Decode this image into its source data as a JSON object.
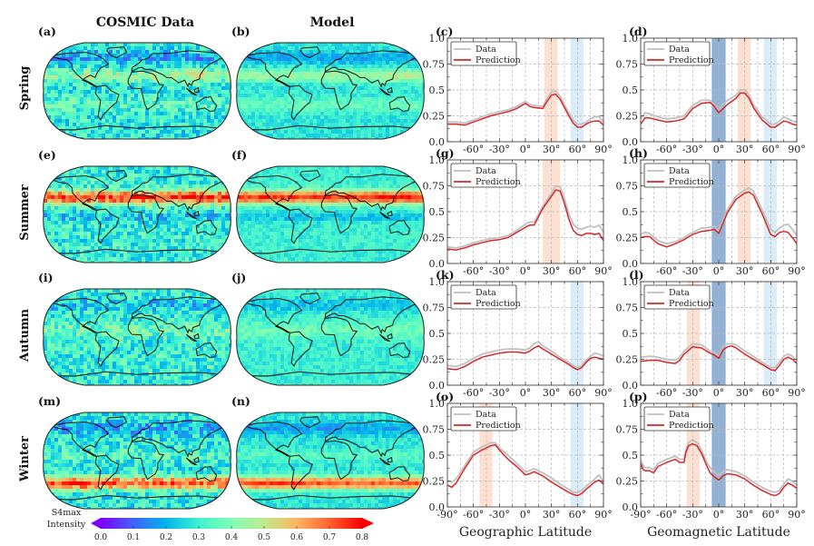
{
  "column_titles": [
    "COSMIC Data",
    "Model"
  ],
  "row_titles": [
    "Spring",
    "Summer",
    "Autumn",
    "Winter"
  ],
  "maps": [
    {
      "label": "(a)",
      "season": "Spring",
      "source": "COSMIC Data",
      "highlight": "mid-latitude band ~30N, moderate"
    },
    {
      "label": "(b)",
      "season": "Spring",
      "source": "Model",
      "highlight": "mid-latitude band ~30N, smoother"
    },
    {
      "label": "(e)",
      "season": "Summer",
      "source": "COSMIC Data",
      "highlight": "strong band 20N-45N"
    },
    {
      "label": "(f)",
      "season": "Summer",
      "source": "Model",
      "highlight": "strong band 20N-45N"
    },
    {
      "label": "(i)",
      "season": "Autumn",
      "source": "COSMIC Data",
      "highlight": "weak, near uniform"
    },
    {
      "label": "(j)",
      "season": "Autumn",
      "source": "Model",
      "highlight": "weak, near uniform"
    },
    {
      "label": "(m)",
      "season": "Winter",
      "source": "COSMIC Data",
      "highlight": "strong band 30S-60S"
    },
    {
      "label": "(n)",
      "season": "Winter",
      "source": "Model",
      "highlight": "strong band 30S-60S"
    }
  ],
  "colorbar": {
    "label_line1": "S4max",
    "label_line2": "Intensity",
    "ticks": [
      "0.0",
      "0.1",
      "0.2",
      "0.3",
      "0.4",
      "0.5",
      "0.6",
      "0.7",
      "0.8"
    ],
    "range": [
      0.0,
      0.8
    ],
    "colormap": "rainbow",
    "colors": [
      "#7f00ff",
      "#4062fa",
      "#00b5eb",
      "#3ff2d1",
      "#80ffb4",
      "#bfe98f",
      "#ffb360",
      "#ff6230",
      "#ff0000"
    ]
  },
  "legend": {
    "data": "Data",
    "prediction": "Prediction"
  },
  "colors": {
    "data": "#c0c0c0",
    "prediction": "#d62728",
    "band_orange": "#fbd5c2",
    "band_lightblue": "#cfe5f7",
    "band_darkblue": "#7fa3cc"
  },
  "xlabels": [
    "Geographic Latitude",
    "Geomagnetic Latitude"
  ],
  "chart_data": [
    {
      "type": "line",
      "label": "(c)",
      "season": "Spring",
      "xlabel": "Geographic Latitude",
      "xlim": [
        -90,
        90
      ],
      "ylim": [
        0,
        1
      ],
      "grid": true,
      "legend": "top-left",
      "xticks": [
        "-90°",
        "-60°",
        "-30°",
        "0°",
        "30°",
        "60°",
        "90°"
      ],
      "yticks": [
        "0.0",
        "0.25",
        "0.5",
        "0.75",
        "1.0"
      ],
      "bands": [
        {
          "from": 22,
          "to": 37,
          "color": "orange"
        },
        {
          "from": 52,
          "to": 67,
          "color": "lightblue"
        }
      ],
      "x": [
        -90,
        -80,
        -70,
        -60,
        -50,
        -40,
        -30,
        -20,
        -10,
        0,
        5,
        10,
        20,
        25,
        30,
        35,
        40,
        45,
        50,
        55,
        60,
        65,
        70,
        75,
        80,
        85,
        90
      ],
      "series": [
        {
          "name": "Data",
          "values": [
            0.19,
            0.19,
            0.18,
            0.21,
            0.24,
            0.27,
            0.29,
            0.31,
            0.34,
            0.39,
            0.36,
            0.35,
            0.34,
            0.42,
            0.48,
            0.49,
            0.44,
            0.36,
            0.28,
            0.21,
            0.17,
            0.17,
            0.19,
            0.22,
            0.24,
            0.24,
            0.19
          ]
        },
        {
          "name": "Prediction",
          "values": [
            0.17,
            0.17,
            0.16,
            0.19,
            0.22,
            0.25,
            0.27,
            0.29,
            0.32,
            0.37,
            0.34,
            0.33,
            0.32,
            0.39,
            0.45,
            0.46,
            0.41,
            0.33,
            0.25,
            0.18,
            0.14,
            0.14,
            0.17,
            0.19,
            0.2,
            0.2,
            0.16
          ]
        }
      ]
    },
    {
      "type": "line",
      "label": "(d)",
      "season": "Spring",
      "xlabel": "Geomagnetic Latitude",
      "xlim": [
        -90,
        90
      ],
      "ylim": [
        0,
        1
      ],
      "grid": true,
      "legend": "top-left",
      "xticks": [
        "-90°",
        "-60°",
        "-30°",
        "0°",
        "30°",
        "60°",
        "90°"
      ],
      "yticks": [
        "0.0",
        "0.25",
        "0.5",
        "0.75",
        "1.0"
      ],
      "bands": [
        {
          "from": -8,
          "to": 8,
          "color": "darkblue"
        },
        {
          "from": 22,
          "to": 37,
          "color": "orange"
        },
        {
          "from": 52,
          "to": 67,
          "color": "lightblue"
        }
      ],
      "x": [
        -90,
        -85,
        -80,
        -70,
        -60,
        -50,
        -40,
        -30,
        -20,
        -10,
        -5,
        0,
        5,
        10,
        20,
        25,
        30,
        35,
        40,
        50,
        60,
        65,
        70,
        75,
        80,
        85,
        90
      ],
      "series": [
        {
          "name": "Data",
          "values": [
            0.22,
            0.28,
            0.27,
            0.24,
            0.22,
            0.23,
            0.25,
            0.35,
            0.4,
            0.4,
            0.36,
            0.31,
            0.36,
            0.4,
            0.45,
            0.5,
            0.5,
            0.45,
            0.36,
            0.24,
            0.17,
            0.17,
            0.2,
            0.24,
            0.22,
            0.2,
            0.19
          ]
        },
        {
          "name": "Prediction",
          "values": [
            0.17,
            0.23,
            0.23,
            0.21,
            0.19,
            0.2,
            0.22,
            0.32,
            0.37,
            0.38,
            0.34,
            0.28,
            0.32,
            0.36,
            0.42,
            0.47,
            0.47,
            0.42,
            0.33,
            0.21,
            0.14,
            0.14,
            0.17,
            0.2,
            0.19,
            0.17,
            0.16
          ]
        }
      ]
    },
    {
      "type": "line",
      "label": "(g)",
      "season": "Summer",
      "xlabel": "Geographic Latitude",
      "xlim": [
        -90,
        90
      ],
      "ylim": [
        0,
        1
      ],
      "grid": true,
      "legend": "top-left",
      "xticks": [
        "-90°",
        "-60°",
        "-30°",
        "0°",
        "30°",
        "60°",
        "90°"
      ],
      "yticks": [
        "0.0",
        "0.25",
        "0.5",
        "0.75",
        "1.0"
      ],
      "bands": [
        {
          "from": 20,
          "to": 40,
          "color": "orange"
        }
      ],
      "x": [
        -90,
        -80,
        -70,
        -60,
        -50,
        -40,
        -30,
        -20,
        -10,
        0,
        5,
        10,
        20,
        30,
        35,
        40,
        45,
        50,
        55,
        60,
        65,
        70,
        75,
        80,
        85,
        90
      ],
      "series": [
        {
          "name": "Data",
          "values": [
            0.16,
            0.15,
            0.17,
            0.2,
            0.22,
            0.24,
            0.25,
            0.27,
            0.32,
            0.38,
            0.4,
            0.4,
            0.55,
            0.68,
            0.75,
            0.74,
            0.63,
            0.48,
            0.38,
            0.34,
            0.33,
            0.35,
            0.36,
            0.35,
            0.37,
            0.3
          ]
        },
        {
          "name": "Prediction",
          "values": [
            0.14,
            0.13,
            0.15,
            0.18,
            0.2,
            0.22,
            0.23,
            0.25,
            0.3,
            0.35,
            0.37,
            0.37,
            0.53,
            0.65,
            0.71,
            0.7,
            0.58,
            0.43,
            0.32,
            0.28,
            0.27,
            0.29,
            0.29,
            0.28,
            0.29,
            0.22
          ]
        }
      ]
    },
    {
      "type": "line",
      "label": "(h)",
      "season": "Summer",
      "xlabel": "Geomagnetic Latitude",
      "xlim": [
        -90,
        90
      ],
      "ylim": [
        0,
        1
      ],
      "grid": true,
      "legend": "top-left",
      "xticks": [
        "-90°",
        "-60°",
        "-30°",
        "0°",
        "30°",
        "60°",
        "90°"
      ],
      "yticks": [
        "0.0",
        "0.25",
        "0.5",
        "0.75",
        "1.0"
      ],
      "bands": [
        {
          "from": -8,
          "to": 8,
          "color": "darkblue"
        },
        {
          "from": 22,
          "to": 37,
          "color": "orange"
        },
        {
          "from": 52,
          "to": 67,
          "color": "lightblue"
        }
      ],
      "x": [
        -90,
        -85,
        -80,
        -70,
        -60,
        -50,
        -40,
        -30,
        -20,
        -10,
        -5,
        0,
        5,
        10,
        20,
        30,
        35,
        40,
        50,
        60,
        65,
        70,
        75,
        80,
        85,
        90
      ],
      "series": [
        {
          "name": "Data",
          "values": [
            0.28,
            0.3,
            0.29,
            0.22,
            0.19,
            0.21,
            0.25,
            0.3,
            0.34,
            0.35,
            0.36,
            0.31,
            0.42,
            0.52,
            0.65,
            0.71,
            0.73,
            0.7,
            0.52,
            0.33,
            0.3,
            0.34,
            0.37,
            0.38,
            0.33,
            0.27
          ]
        },
        {
          "name": "Prediction",
          "values": [
            0.25,
            0.26,
            0.26,
            0.19,
            0.16,
            0.19,
            0.23,
            0.28,
            0.31,
            0.32,
            0.33,
            0.29,
            0.39,
            0.49,
            0.62,
            0.68,
            0.69,
            0.66,
            0.48,
            0.28,
            0.26,
            0.3,
            0.31,
            0.3,
            0.25,
            0.19
          ]
        }
      ]
    },
    {
      "type": "line",
      "label": "(k)",
      "season": "Autumn",
      "xlabel": "Geographic Latitude",
      "xlim": [
        -90,
        90
      ],
      "ylim": [
        0,
        1
      ],
      "grid": true,
      "legend": "top-left",
      "xticks": [
        "-90°",
        "-60°",
        "-30°",
        "0°",
        "30°",
        "60°",
        "90°"
      ],
      "yticks": [
        "0.0",
        "0.25",
        "0.5",
        "0.75",
        "1.0"
      ],
      "bands": [
        {
          "from": 52,
          "to": 67,
          "color": "lightblue"
        }
      ],
      "x": [
        -90,
        -80,
        -70,
        -60,
        -50,
        -40,
        -30,
        -20,
        -10,
        0,
        5,
        10,
        15,
        20,
        30,
        40,
        50,
        55,
        60,
        65,
        70,
        75,
        80,
        85,
        90
      ],
      "series": [
        {
          "name": "Data",
          "values": [
            0.19,
            0.18,
            0.21,
            0.26,
            0.3,
            0.32,
            0.34,
            0.35,
            0.35,
            0.34,
            0.36,
            0.4,
            0.42,
            0.38,
            0.33,
            0.27,
            0.22,
            0.19,
            0.17,
            0.19,
            0.24,
            0.28,
            0.31,
            0.3,
            0.28
          ]
        },
        {
          "name": "Prediction",
          "values": [
            0.16,
            0.15,
            0.18,
            0.23,
            0.27,
            0.29,
            0.31,
            0.32,
            0.32,
            0.31,
            0.33,
            0.36,
            0.38,
            0.35,
            0.3,
            0.25,
            0.2,
            0.17,
            0.15,
            0.17,
            0.22,
            0.26,
            0.27,
            0.26,
            0.25
          ]
        }
      ]
    },
    {
      "type": "line",
      "label": "(l)",
      "season": "Autumn",
      "xlabel": "Geomagnetic Latitude",
      "xlim": [
        -90,
        90
      ],
      "ylim": [
        0,
        1
      ],
      "grid": true,
      "legend": "top-left",
      "xticks": [
        "-90°",
        "-60°",
        "-30°",
        "0°",
        "30°",
        "60°",
        "90°"
      ],
      "yticks": [
        "0.0",
        "0.25",
        "0.5",
        "0.75",
        "1.0"
      ],
      "bands": [
        {
          "from": -37,
          "to": -22,
          "color": "orange"
        },
        {
          "from": -8,
          "to": 8,
          "color": "darkblue"
        },
        {
          "from": 52,
          "to": 67,
          "color": "lightblue"
        }
      ],
      "x": [
        -90,
        -80,
        -70,
        -60,
        -50,
        -45,
        -40,
        -30,
        -20,
        -10,
        -5,
        0,
        5,
        10,
        15,
        20,
        30,
        40,
        50,
        60,
        65,
        70,
        75,
        80,
        85,
        90
      ],
      "series": [
        {
          "name": "Data",
          "values": [
            0.27,
            0.28,
            0.27,
            0.25,
            0.24,
            0.27,
            0.33,
            0.4,
            0.39,
            0.33,
            0.32,
            0.28,
            0.38,
            0.4,
            0.4,
            0.39,
            0.33,
            0.28,
            0.22,
            0.17,
            0.17,
            0.22,
            0.28,
            0.3,
            0.28,
            0.24
          ]
        },
        {
          "name": "Prediction",
          "values": [
            0.23,
            0.24,
            0.24,
            0.22,
            0.21,
            0.24,
            0.3,
            0.37,
            0.36,
            0.31,
            0.29,
            0.26,
            0.34,
            0.37,
            0.38,
            0.36,
            0.3,
            0.25,
            0.2,
            0.15,
            0.14,
            0.19,
            0.25,
            0.27,
            0.25,
            0.21
          ]
        }
      ]
    },
    {
      "type": "line",
      "label": "(o)",
      "season": "Winter",
      "xlabel": "Geographic Latitude",
      "xlim": [
        -90,
        90
      ],
      "ylim": [
        0,
        1
      ],
      "grid": true,
      "legend": "top-left",
      "xticks": [
        "-90°",
        "-60°",
        "-30°",
        "0°",
        "30°",
        "60°",
        "90°"
      ],
      "yticks": [
        "0.0",
        "0.25",
        "0.5",
        "0.75",
        "1.0"
      ],
      "bands": [
        {
          "from": -53,
          "to": -38,
          "color": "orange"
        },
        {
          "from": 52,
          "to": 67,
          "color": "lightblue"
        }
      ],
      "x": [
        -90,
        -85,
        -80,
        -70,
        -60,
        -50,
        -40,
        -35,
        -30,
        -20,
        -10,
        0,
        5,
        10,
        20,
        30,
        40,
        50,
        55,
        60,
        65,
        70,
        80,
        85,
        90
      ],
      "series": [
        {
          "name": "Data",
          "values": [
            0.25,
            0.24,
            0.27,
            0.4,
            0.53,
            0.58,
            0.62,
            0.62,
            0.57,
            0.5,
            0.42,
            0.34,
            0.35,
            0.37,
            0.33,
            0.28,
            0.22,
            0.17,
            0.14,
            0.14,
            0.16,
            0.2,
            0.27,
            0.31,
            0.24
          ]
        },
        {
          "name": "Prediction",
          "values": [
            0.21,
            0.19,
            0.23,
            0.37,
            0.5,
            0.55,
            0.59,
            0.6,
            0.55,
            0.46,
            0.39,
            0.31,
            0.32,
            0.34,
            0.3,
            0.24,
            0.19,
            0.14,
            0.12,
            0.11,
            0.13,
            0.17,
            0.24,
            0.26,
            0.22
          ]
        }
      ]
    },
    {
      "type": "line",
      "label": "(p)",
      "season": "Winter",
      "xlabel": "Geomagnetic Latitude",
      "xlim": [
        -90,
        90
      ],
      "ylim": [
        0,
        1
      ],
      "grid": true,
      "legend": "top-left",
      "xticks": [
        "-90°",
        "-60°",
        "-30°",
        "0°",
        "30°",
        "60°",
        "90°"
      ],
      "yticks": [
        "0.0",
        "0.25",
        "0.5",
        "0.75",
        "1.0"
      ],
      "bands": [
        {
          "from": -37,
          "to": -22,
          "color": "orange"
        },
        {
          "from": -8,
          "to": 8,
          "color": "darkblue"
        }
      ],
      "x": [
        -90,
        -87,
        -85,
        -80,
        -75,
        -70,
        -60,
        -50,
        -45,
        -40,
        -38,
        -35,
        -30,
        -25,
        -20,
        -15,
        -10,
        -5,
        0,
        5,
        10,
        20,
        30,
        40,
        50,
        60,
        65,
        70,
        75,
        80,
        85,
        90
      ],
      "series": [
        {
          "name": "Data",
          "values": [
            0.45,
            0.4,
            0.38,
            0.38,
            0.36,
            0.42,
            0.46,
            0.49,
            0.46,
            0.46,
            0.55,
            0.62,
            0.65,
            0.62,
            0.55,
            0.45,
            0.38,
            0.34,
            0.3,
            0.34,
            0.36,
            0.34,
            0.3,
            0.24,
            0.19,
            0.15,
            0.14,
            0.16,
            0.22,
            0.27,
            0.25,
            0.21
          ]
        },
        {
          "name": "Prediction",
          "values": [
            0.42,
            0.36,
            0.35,
            0.35,
            0.33,
            0.39,
            0.43,
            0.46,
            0.43,
            0.43,
            0.52,
            0.59,
            0.61,
            0.59,
            0.52,
            0.42,
            0.33,
            0.29,
            0.26,
            0.3,
            0.32,
            0.31,
            0.27,
            0.21,
            0.16,
            0.12,
            0.11,
            0.13,
            0.19,
            0.23,
            0.21,
            0.18
          ]
        }
      ]
    }
  ]
}
